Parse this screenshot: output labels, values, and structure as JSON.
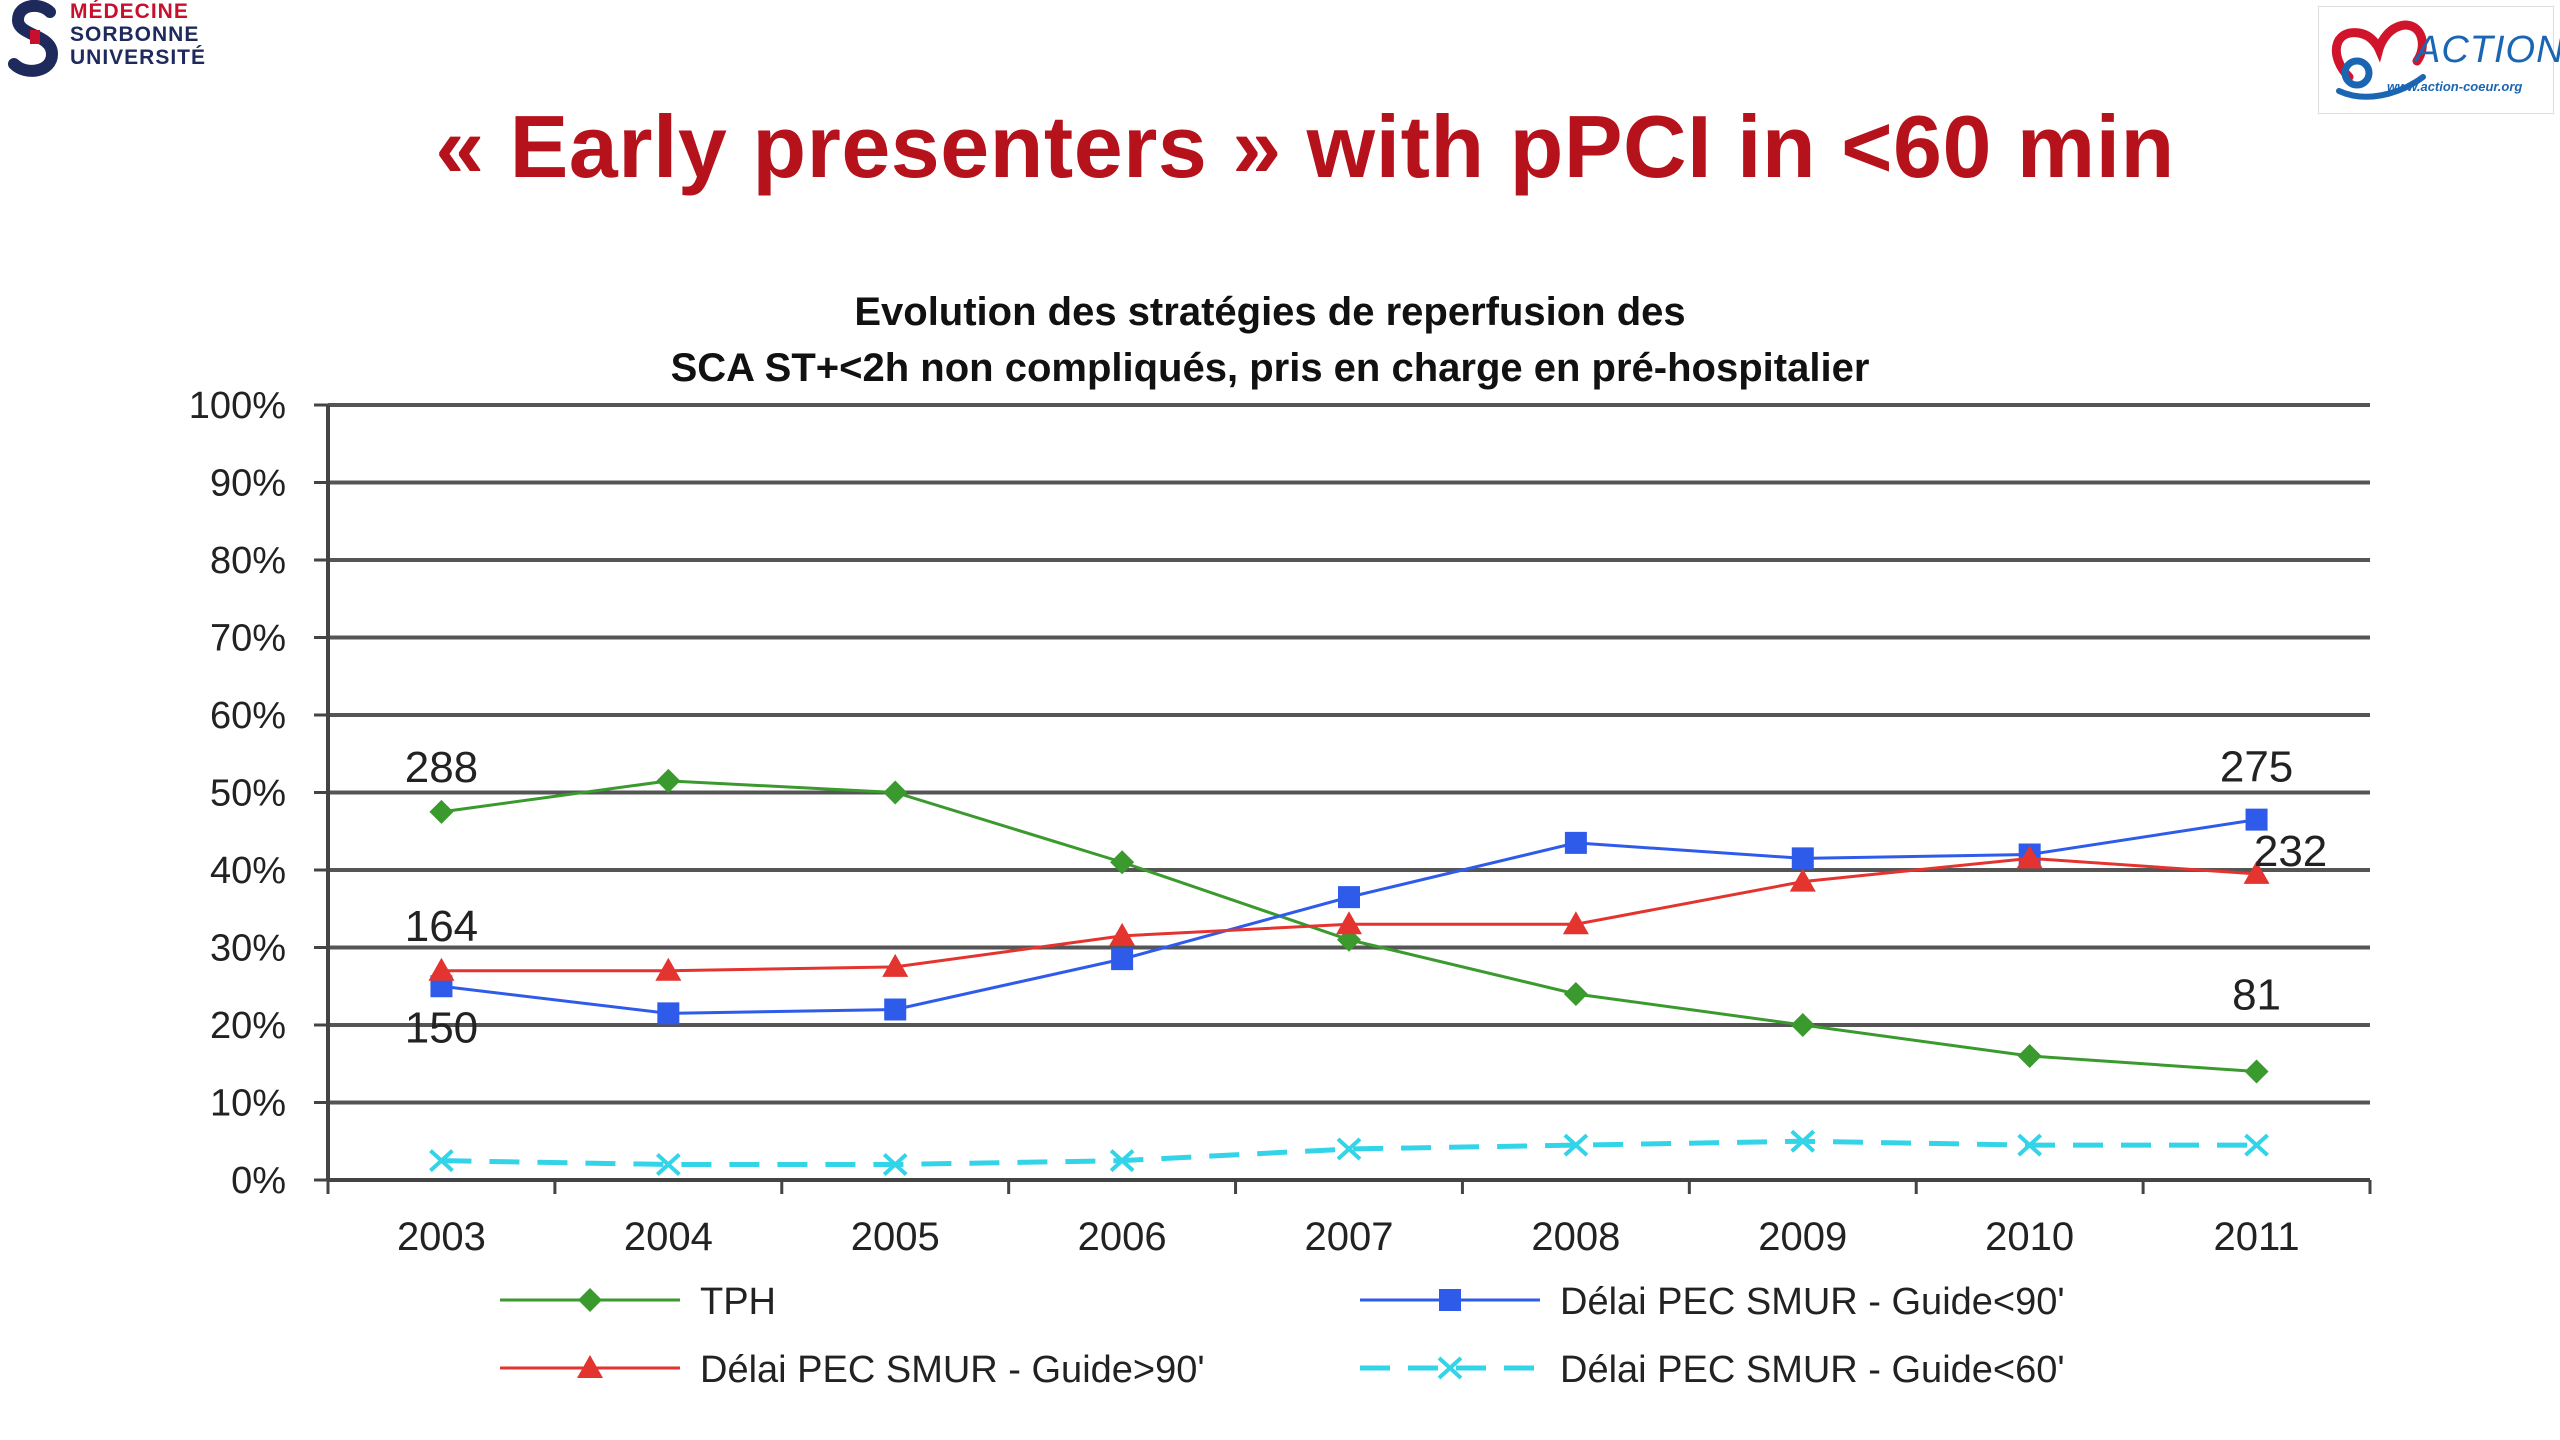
{
  "slide": {
    "title": "« Early presenters » with pPCI in <60 min"
  },
  "logos": {
    "left": {
      "lines": [
        "MÉDECINE",
        "SORBONNE",
        "UNIVERSITÉ"
      ]
    },
    "right": {
      "word": "ACTION",
      "url": "www.action-coeur.org"
    }
  },
  "chart_data": {
    "type": "line",
    "title": [
      "Evolution des stratégies de reperfusion des",
      "SCA ST+<2h non compliqués, pris en charge en pré-hospitalier"
    ],
    "xlabel": "",
    "ylabel": "",
    "categories": [
      "2003",
      "2004",
      "2005",
      "2006",
      "2007",
      "2008",
      "2009",
      "2010",
      "2011"
    ],
    "ylim": [
      0,
      100
    ],
    "yticks": [
      "0%",
      "10%",
      "20%",
      "30%",
      "40%",
      "50%",
      "60%",
      "70%",
      "80%",
      "90%",
      "100%"
    ],
    "grid": true,
    "legend_position": "bottom",
    "series": [
      {
        "name": "TPH",
        "color": "#3a9a2e",
        "marker": "diamond",
        "dash": false,
        "values": [
          47.5,
          51.5,
          50,
          41,
          31,
          24,
          20,
          16,
          14
        ]
      },
      {
        "name": "Délai PEC SMUR - Guide<90'",
        "color": "#2f5bea",
        "marker": "square",
        "dash": false,
        "values": [
          25,
          21.5,
          22,
          28.5,
          36.5,
          43.5,
          41.5,
          42,
          46.5
        ]
      },
      {
        "name": "Délai PEC SMUR - Guide>90'",
        "color": "#e3342f",
        "marker": "triangle",
        "dash": false,
        "values": [
          27,
          27,
          27.5,
          31.5,
          33,
          33,
          38.5,
          41.5,
          39.5
        ]
      },
      {
        "name": "Délai PEC SMUR - Guide<60'",
        "color": "#33d4e8",
        "marker": "x",
        "dash": true,
        "values": [
          2.5,
          2,
          2,
          2.5,
          4,
          4.5,
          5,
          4.5,
          4.5
        ]
      }
    ],
    "annotations": [
      {
        "text": "288",
        "series": 0,
        "index": 0,
        "pos": "above"
      },
      {
        "text": "164",
        "series": 2,
        "index": 0,
        "pos": "above"
      },
      {
        "text": "150",
        "series": 1,
        "index": 0,
        "pos": "below"
      },
      {
        "text": "275",
        "series": 1,
        "index": 8,
        "pos": "above"
      },
      {
        "text": "232",
        "series": 2,
        "index": 8,
        "pos": "above-right"
      },
      {
        "text": "81",
        "series": 0,
        "index": 8,
        "pos": "above"
      }
    ]
  }
}
